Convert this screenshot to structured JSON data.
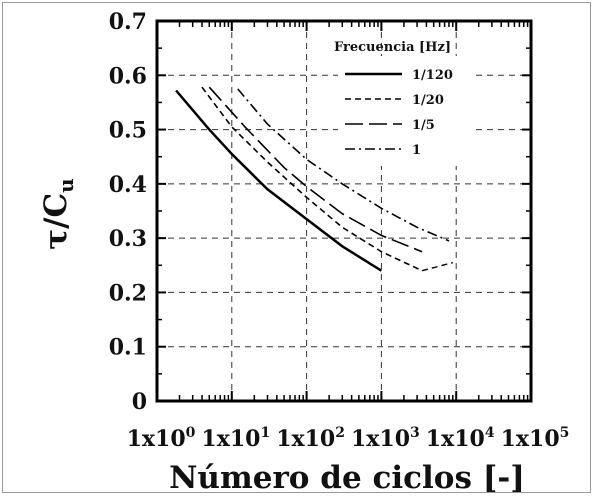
{
  "chart_data": {
    "type": "line",
    "x_scale": "log",
    "xlabel": "Número de ciclos [-]",
    "ylabel_main": "τ/C",
    "ylabel_sub": "u",
    "xlim": [
      1,
      100000
    ],
    "ylim": [
      0,
      0.7
    ],
    "grid": true,
    "legend_title": "Frecuencia [Hz]",
    "legend_position": "top-right",
    "xticks": [
      {
        "exp": "0",
        "mant": "1x10"
      },
      {
        "exp": "1",
        "mant": "1x10"
      },
      {
        "exp": "2",
        "mant": "1x10"
      },
      {
        "exp": "3",
        "mant": "1x10"
      },
      {
        "exp": "4",
        "mant": "1x10"
      },
      {
        "exp": "5",
        "mant": "1x10"
      }
    ],
    "yticks": [
      "0",
      "0.1",
      "0.2",
      "0.3",
      "0.4",
      "0.5",
      "0.6",
      "0.7"
    ],
    "series": [
      {
        "name": "1/120",
        "style": "solid",
        "x": [
          1.8,
          5,
          10,
          30,
          100,
          300,
          1000
        ],
        "y": [
          0.572,
          0.5,
          0.455,
          0.39,
          0.335,
          0.285,
          0.24
        ]
      },
      {
        "name": "1/20",
        "style": "dashed",
        "x": [
          4,
          10,
          30,
          100,
          300,
          1000,
          3500
        ],
        "y": [
          0.578,
          0.505,
          0.44,
          0.375,
          0.32,
          0.275,
          0.24
        ]
      },
      {
        "name": "1/5",
        "style": "longdash",
        "x": [
          5,
          15,
          50,
          100,
          300,
          1000,
          3500
        ],
        "y": [
          0.578,
          0.505,
          0.43,
          0.395,
          0.345,
          0.305,
          0.275
        ]
      },
      {
        "name": "1",
        "style": "dashdot",
        "x": [
          12,
          30,
          100,
          300,
          1000,
          3000,
          8000
        ],
        "y": [
          0.575,
          0.51,
          0.445,
          0.4,
          0.355,
          0.32,
          0.295
        ]
      }
    ],
    "extra_segment": {
      "x": [
        3500,
        9000
      ],
      "y": [
        0.24,
        0.255
      ],
      "style": "dashed"
    }
  }
}
